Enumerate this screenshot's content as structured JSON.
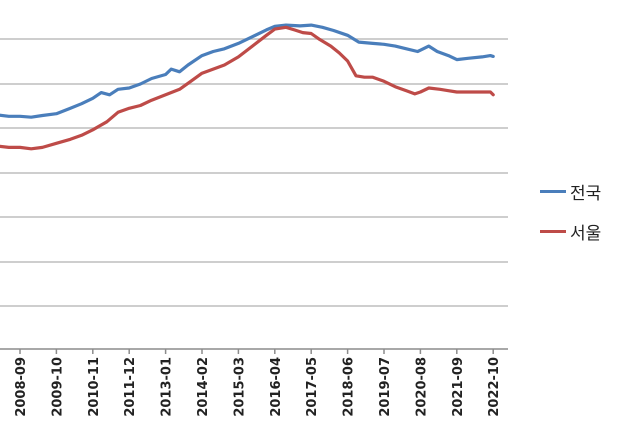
{
  "chart_data": {
    "type": "line",
    "title": "",
    "xlabel": "",
    "ylabel": "",
    "x_ticks": [
      "2008-09",
      "2009-10",
      "2010-11",
      "2011-12",
      "2013-01",
      "2014-02",
      "2015-03",
      "2016-04",
      "2017-05",
      "2018-06",
      "2019-07",
      "2020-08",
      "2021-09",
      "2022-10"
    ],
    "grid": true,
    "legend_position": "right",
    "series": [
      {
        "name": "전국",
        "color": "#4a7ebb",
        "points": [
          [
            "2007-09",
            113.5
          ],
          [
            "2008-01",
            112.0
          ],
          [
            "2008-05",
            111.5
          ],
          [
            "2008-09",
            111.5
          ],
          [
            "2009-01",
            111.2
          ],
          [
            "2009-05",
            111.8
          ],
          [
            "2009-10",
            112.5
          ],
          [
            "2010-03",
            114.5
          ],
          [
            "2010-07",
            116.2
          ],
          [
            "2010-11",
            118.2
          ],
          [
            "2011-02",
            120.3
          ],
          [
            "2011-05",
            119.5
          ],
          [
            "2011-08",
            121.5
          ],
          [
            "2011-12",
            122.0
          ],
          [
            "2012-04",
            123.5
          ],
          [
            "2012-08",
            125.5
          ],
          [
            "2013-01",
            127.0
          ],
          [
            "2013-03",
            129.0
          ],
          [
            "2013-06",
            128.0
          ],
          [
            "2013-09",
            130.5
          ],
          [
            "2014-02",
            134.0
          ],
          [
            "2014-06",
            135.5
          ],
          [
            "2014-10",
            136.5
          ],
          [
            "2015-03",
            138.5
          ],
          [
            "2015-08",
            141.0
          ],
          [
            "2016-01",
            143.5
          ],
          [
            "2016-04",
            144.8
          ],
          [
            "2016-08",
            145.3
          ],
          [
            "2017-01",
            145.0
          ],
          [
            "2017-05",
            145.3
          ],
          [
            "2017-09",
            144.5
          ],
          [
            "2018-01",
            143.3
          ],
          [
            "2018-06",
            141.5
          ],
          [
            "2018-10",
            139.0
          ],
          [
            "2019-03",
            138.5
          ],
          [
            "2019-07",
            138.2
          ],
          [
            "2019-11",
            137.5
          ],
          [
            "2020-03",
            136.5
          ],
          [
            "2020-07",
            135.5
          ],
          [
            "2020-08",
            136.0
          ],
          [
            "2020-11",
            137.5
          ],
          [
            "2021-02",
            135.5
          ],
          [
            "2021-06",
            134.0
          ],
          [
            "2021-09",
            132.5
          ],
          [
            "2022-01",
            133.0
          ],
          [
            "2022-06",
            133.5
          ],
          [
            "2022-09",
            134.0
          ],
          [
            "2022-10",
            133.7
          ]
        ]
      },
      {
        "name": "서울",
        "color": "#be4b48",
        "points": [
          [
            "2007-09",
            102.5
          ],
          [
            "2008-01",
            100.5
          ],
          [
            "2008-05",
            100.0
          ],
          [
            "2008-09",
            100.0
          ],
          [
            "2009-01",
            99.5
          ],
          [
            "2009-05",
            100.0
          ],
          [
            "2009-10",
            101.5
          ],
          [
            "2010-03",
            103.0
          ],
          [
            "2010-07",
            104.5
          ],
          [
            "2010-11",
            106.5
          ],
          [
            "2011-04",
            109.5
          ],
          [
            "2011-08",
            113.0
          ],
          [
            "2011-12",
            114.5
          ],
          [
            "2012-04",
            115.5
          ],
          [
            "2012-08",
            117.5
          ],
          [
            "2013-01",
            119.5
          ],
          [
            "2013-06",
            121.5
          ],
          [
            "2013-10",
            124.5
          ],
          [
            "2014-02",
            127.5
          ],
          [
            "2014-06",
            129.0
          ],
          [
            "2014-10",
            130.5
          ],
          [
            "2015-03",
            133.5
          ],
          [
            "2015-08",
            137.5
          ],
          [
            "2016-01",
            141.5
          ],
          [
            "2016-04",
            143.8
          ],
          [
            "2016-08",
            144.5
          ],
          [
            "2016-11",
            143.5
          ],
          [
            "2017-02",
            142.5
          ],
          [
            "2017-05",
            142.2
          ],
          [
            "2017-08",
            140.0
          ],
          [
            "2017-12",
            137.5
          ],
          [
            "2018-03",
            135.0
          ],
          [
            "2018-06",
            132.0
          ],
          [
            "2018-09",
            126.5
          ],
          [
            "2018-12",
            126.0
          ],
          [
            "2019-03",
            126.0
          ],
          [
            "2019-07",
            124.5
          ],
          [
            "2019-11",
            122.5
          ],
          [
            "2020-03",
            121.0
          ],
          [
            "2020-06",
            119.8
          ],
          [
            "2020-08",
            120.5
          ],
          [
            "2020-11",
            122.0
          ],
          [
            "2021-03",
            121.5
          ],
          [
            "2021-06",
            121.0
          ],
          [
            "2021-09",
            120.5
          ],
          [
            "2022-01",
            120.5
          ],
          [
            "2022-06",
            120.5
          ],
          [
            "2022-09",
            120.5
          ],
          [
            "2022-10",
            119.5
          ]
        ]
      }
    ]
  }
}
